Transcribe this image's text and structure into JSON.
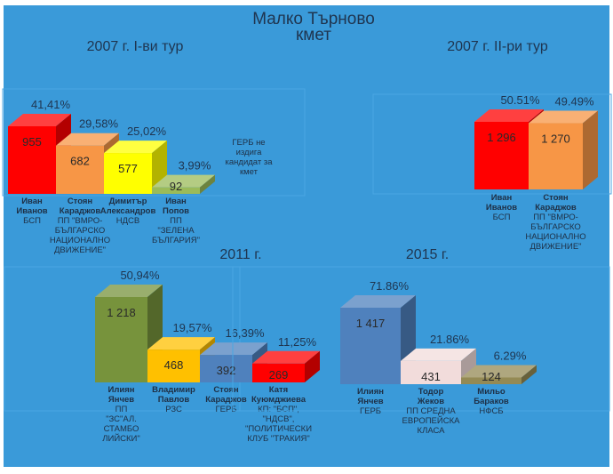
{
  "header": {
    "title": "Малко Търново",
    "subtitle": "кмет"
  },
  "chart_data": [
    {
      "type": "bar",
      "title": "2007 г. I-ви тур",
      "note": [
        "ГЕРБ не",
        "издига",
        "кандидат за",
        "кмет"
      ],
      "bars": [
        {
          "value": 955,
          "label": "955",
          "pct": "41,41%",
          "name": [
            "Иван",
            "Иванов"
          ],
          "party": [
            "БСП"
          ],
          "color": "#ff0000"
        },
        {
          "value": 682,
          "label": "682",
          "pct": "29,58%",
          "name": [
            "Стоян",
            "Караджов"
          ],
          "party": [
            "ПП \"ВМРО-",
            "БЪЛГАРСКО",
            "НАЦИОНАЛНО",
            "ДВИЖЕНИЕ\""
          ],
          "color": "#f79646"
        },
        {
          "value": 577,
          "label": "577",
          "pct": "25,02%",
          "name": [
            "Димитър",
            "Александров"
          ],
          "party": [
            "НДСВ"
          ],
          "color": "#ffff00"
        },
        {
          "value": 92,
          "label": "92",
          "pct": "3,99%",
          "name": [
            "Иван",
            "Попов"
          ],
          "party": [
            "ПП",
            "\"ЗЕЛЕНА",
            "БЪЛГАРИЯ\""
          ],
          "color": "#9bbb59"
        }
      ]
    },
    {
      "type": "bar",
      "title": "2007 г. II-ри тур",
      "bars": [
        {
          "value": 1296,
          "label": "1 296",
          "pct": "50.51%",
          "name": [
            "Иван",
            "Иванов"
          ],
          "party": [
            "БСП"
          ],
          "color": "#ff0000"
        },
        {
          "value": 1270,
          "label": "1 270",
          "pct": "49.49%",
          "name": [
            "Стоян",
            "Караджов"
          ],
          "party": [
            "ПП \"ВМРО-",
            "БЪЛГАРСКО",
            "НАЦИОНАЛНО",
            "ДВИЖЕНИЕ\""
          ],
          "color": "#f79646"
        }
      ]
    },
    {
      "type": "bar",
      "title": "2011 г.",
      "bars": [
        {
          "value": 1218,
          "label": "1 218",
          "pct": "50,94%",
          "name": [
            "Илиян",
            "Янчев"
          ],
          "party": [
            "ПП",
            "\"ЗС\"АЛ.",
            "СТАМБО",
            "ЛИЙСКИ\""
          ],
          "color": "#77933c"
        },
        {
          "value": 468,
          "label": "468",
          "pct": "19,57%",
          "name": [
            "Владимир",
            "Павлов"
          ],
          "party": [
            "РЗС"
          ],
          "color": "#ffc000"
        },
        {
          "value": 392,
          "label": "392",
          "pct": "16,39%",
          "name": [
            "Стоян",
            "Караджов"
          ],
          "party": [
            "ГЕРБ"
          ],
          "color": "#4f81bd"
        },
        {
          "value": 269,
          "label": "269",
          "pct": "11,25%",
          "name": [
            "Катя",
            "Куюмджиева"
          ],
          "party": [
            "КП: \"БСП\",",
            "\"НДСВ\",",
            "\"ПОЛИТИЧЕСКИ",
            "КЛУБ \"ТРАКИЯ\""
          ],
          "color": "#ff0000"
        }
      ]
    },
    {
      "type": "bar",
      "title": "2015 г.",
      "bars": [
        {
          "value": 1417,
          "label": "1 417",
          "pct": "71.86%",
          "name": [
            "Илиян",
            "Янчев"
          ],
          "party": [
            "ГЕРБ"
          ],
          "color": "#4f81bd"
        },
        {
          "value": 431,
          "label": "431",
          "pct": "21.86%",
          "name": [
            "Тодор",
            "Жеков"
          ],
          "party": [
            "ПП СРЕДНА",
            "ЕВРОПЕЙСКА",
            "КЛАСА"
          ],
          "color": "#f2dcdb"
        },
        {
          "value": 124,
          "label": "124",
          "pct": "6.29%",
          "name": [
            "Мильо",
            "Бараков"
          ],
          "party": [
            "НФСБ"
          ],
          "color": "#948a54"
        }
      ]
    }
  ]
}
